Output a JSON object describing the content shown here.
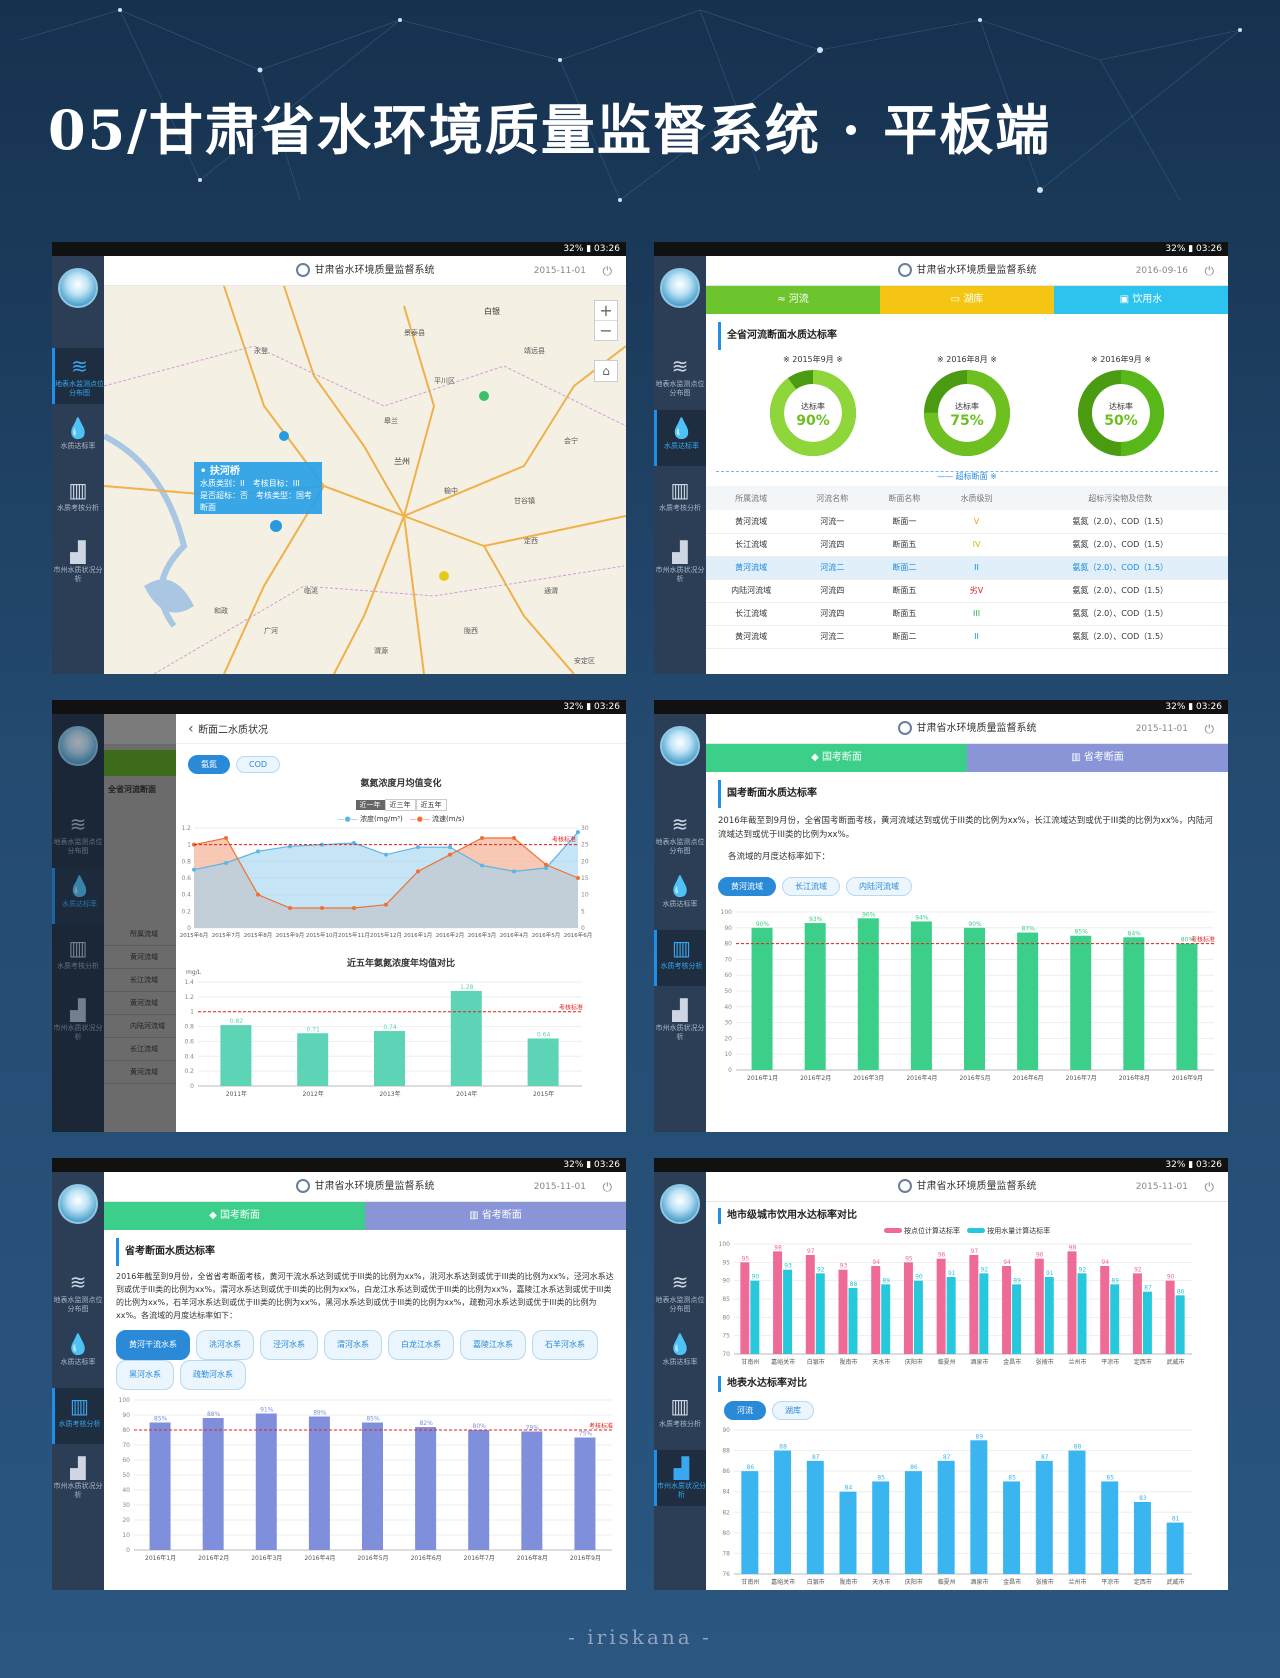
{
  "page_title": "05/甘肃省水环境质量监督系统 · 平板端",
  "credit": "- iriskana -",
  "status_bar": "32% ▮ 03:26",
  "app_title": "甘肃省水环境质量监督系统",
  "nav": {
    "map": "地表水监测点位分布图",
    "rate": "水质达标率",
    "assess": "水质考核分析",
    "city": "市州水质状况分析"
  },
  "screen1": {
    "date": "2015-11-01",
    "popup": {
      "title": "扶河桥",
      "line1": "水质类别：II　考核目标：III",
      "line2": "是否超标：否　考核类型：国考断面"
    },
    "places": [
      "白银",
      "兰州",
      "景泰县",
      "靖远县",
      "临洮",
      "定西",
      "会宁",
      "平川区",
      "永登",
      "皋兰",
      "榆中",
      "和政",
      "广河",
      "渭源",
      "陇西",
      "通渭",
      "安定区",
      "甘谷镇"
    ]
  },
  "screen2": {
    "date": "2016-09-16",
    "tabs": [
      "河流",
      "湖库",
      "饮用水"
    ],
    "section": "全省河流断面水质达标率",
    "donuts": [
      {
        "label": "※ 2015年9月 ※",
        "value": 90,
        "caption": "达标率",
        "text": "90%"
      },
      {
        "label": "※ 2016年8月 ※",
        "value": 75,
        "caption": "达标率",
        "text": "75%"
      },
      {
        "label": "※ 2016年9月 ※",
        "value": 50,
        "caption": "达标率",
        "text": "50%"
      }
    ],
    "divider": "—— 超标断面 ※",
    "columns": [
      "所属流域",
      "河流名称",
      "断面名称",
      "水质级别",
      "超标污染物及倍数"
    ],
    "rows": [
      [
        "黄河流域",
        "河流一",
        "断面一",
        "V",
        "氨氮（2.0）、COD（1.5）"
      ],
      [
        "长江流域",
        "河流四",
        "断面五",
        "IV",
        "氨氮（2.0）、COD（1.5）"
      ],
      [
        "黄河流域",
        "河流二",
        "断面二",
        "II",
        "氨氮（2.0）、COD（1.5）"
      ],
      [
        "内陆河流域",
        "河流四",
        "断面五",
        "劣V",
        "氨氮（2.0）、COD（1.5）"
      ],
      [
        "长江流域",
        "河流四",
        "断面五",
        "III",
        "氨氮（2.0）、COD（1.5）"
      ],
      [
        "黄河流域",
        "河流二",
        "断面二",
        "II",
        "氨氮（2.0）、COD（1.5）"
      ]
    ],
    "grade_colors": [
      "#f0a800",
      "#d8b800",
      "#1e88d8",
      "#e02020",
      "#2bb04a",
      "#1e88d8"
    ]
  },
  "screen3": {
    "back_title": "断面二水质状况",
    "pills": [
      "氨氮",
      "COD"
    ],
    "chart1_title": "氨氮浓度月均值变化",
    "periods": [
      "近一年",
      "近三年",
      "近五年"
    ],
    "legend": [
      "浓度(mg/m³)",
      "流速(m/s)"
    ],
    "chart2_title": "近五年氨氮浓度年均值对比",
    "unit": "mg/L",
    "std_label": "考核标准",
    "bg_section": "全省河流断面",
    "bg_rows": [
      "所属流域",
      "黄河流域",
      "长江流域",
      "黄河流域",
      "内陆河流域",
      "长江流域",
      "黄河流域"
    ]
  },
  "screen4": {
    "date": "2015-11-01",
    "tabs": [
      "国考断面",
      "省考断面"
    ],
    "section": "国考断面水质达标率",
    "para": "2016年截至到9月份，全省国考断面考核，黄河流域达到或优于III类的比例为xx%，长江流域达到或优于III类的比例为xx%，内陆河流域达到或优于III类的比例为xx%。",
    "sub": "各流域的月度达标率如下：",
    "pills": [
      "黄河流域",
      "长江流域",
      "内陆河流域"
    ],
    "std_label": "考核标准"
  },
  "screen5": {
    "date": "2015-11-01",
    "tabs": [
      "国考断面",
      "省考断面"
    ],
    "section": "省考断面水质达标率",
    "para": "2016年截至到9月份，全省省考断面考核，黄河干流水系达到或优于III类的比例为xx%，洮河水系达到或优于III类的比例为xx%，泾河水系达到或优于III类的比例为xx%，渭河水系达到或优于III类的比例为xx%，白龙江水系达到或优于III类的比例为xx%，嘉陵江水系达到或优于III类的比例为xx%，石羊河水系达到或优于III类的比例为xx%，黑河水系达到或优于III类的比例为xx%，疏勒河水系达到或优于III类的比例为xx%。各流域的月度达标率如下：",
    "pills": [
      "黄河干流水系",
      "洮河水系",
      "泾河水系",
      "渭河水系",
      "白龙江水系",
      "嘉陵江水系",
      "石羊河水系",
      "黑河水系",
      "疏勒河水系"
    ],
    "std_label": "考核标准"
  },
  "screen6": {
    "date": "2015-11-01",
    "section1": "地市级城市饮用水达标率对比",
    "legend": [
      "按点位计算达标率",
      "按用水量计算达标率"
    ],
    "section2": "地表水达标率对比",
    "pills": [
      "河流",
      "湖库"
    ]
  },
  "chart_data": [
    {
      "type": "line",
      "title": "氨氮浓度月均值变化",
      "x": [
        "2015年6月",
        "2015年7月",
        "2015年8月",
        "2015年9月",
        "2015年10月",
        "2015年11月",
        "2015年12月",
        "2016年1月",
        "2016年2月",
        "2016年3月",
        "2016年4月",
        "2016年5月",
        "2016年6月"
      ],
      "series": [
        {
          "name": "浓度(mg/m³)",
          "values": [
            0.7,
            0.78,
            0.92,
            0.98,
            1.0,
            1.02,
            0.88,
            0.97,
            0.97,
            0.75,
            0.68,
            0.72,
            1.15
          ]
        },
        {
          "name": "流速(m/s)",
          "values": [
            25,
            27,
            10,
            6,
            6,
            6,
            7,
            17,
            22,
            27,
            27,
            19,
            15
          ]
        }
      ],
      "ylim": [
        0,
        1.2
      ],
      "y2lim": [
        0,
        30
      ],
      "standard": 1.0
    },
    {
      "type": "bar",
      "title": "近五年氨氮浓度年均值对比",
      "categories": [
        "2011年",
        "2012年",
        "2013年",
        "2014年",
        "2015年"
      ],
      "values": [
        0.82,
        0.71,
        0.74,
        1.28,
        0.64
      ],
      "ylim": [
        0,
        1.4
      ],
      "standard": 1.0,
      "color": "#5dd4b6"
    },
    {
      "type": "bar",
      "title": "国考断面水质达标率",
      "categories": [
        "2016年1月",
        "2016年2月",
        "2016年3月",
        "2016年4月",
        "2016年5月",
        "2016年6月",
        "2016年7月",
        "2016年8月",
        "2016年9月"
      ],
      "values": [
        90,
        93,
        96,
        94,
        90,
        87,
        85,
        84,
        80
      ],
      "ylim": [
        0,
        100
      ],
      "standard": 80,
      "color": "#3ccf8a"
    },
    {
      "type": "bar",
      "title": "省考断面水质达标率",
      "categories": [
        "2016年1月",
        "2016年2月",
        "2016年3月",
        "2016年4月",
        "2016年5月",
        "2016年6月",
        "2016年7月",
        "2016年8月",
        "2016年9月"
      ],
      "values": [
        85,
        88,
        91,
        89,
        85,
        82,
        80,
        79,
        75
      ],
      "ylim": [
        0,
        100
      ],
      "standard": 80,
      "color": "#7f8fdb"
    },
    {
      "type": "bar",
      "title": "地市级城市饮用水达标率对比",
      "categories": [
        "甘南州",
        "嘉峪关市",
        "白银市",
        "陇南市",
        "天水市",
        "庆阳市",
        "临夏州",
        "酒泉市",
        "金昌市",
        "张掖市",
        "兰州市",
        "平凉市",
        "定西市",
        "武威市"
      ],
      "series": [
        {
          "name": "按点位计算达标率",
          "values": [
            95,
            98,
            97,
            93,
            94,
            95,
            96,
            97,
            94,
            96,
            98,
            94,
            92,
            90
          ],
          "color": "#ef6b97"
        },
        {
          "name": "按用水量计算达标率",
          "values": [
            90,
            93,
            92,
            88,
            89,
            90,
            91,
            92,
            89,
            91,
            92,
            89,
            87,
            86
          ],
          "color": "#28c8dc"
        }
      ],
      "ylim": [
        70,
        100
      ]
    },
    {
      "type": "bar",
      "title": "地表水达标率对比",
      "categories": [
        "甘南州",
        "嘉峪关市",
        "白银市",
        "陇南市",
        "天水市",
        "庆阳市",
        "临夏州",
        "酒泉市",
        "金昌市",
        "张掖市",
        "兰州市",
        "平凉市",
        "定西市",
        "武威市"
      ],
      "values": [
        86,
        88,
        87,
        84,
        85,
        86,
        87,
        89,
        85,
        87,
        88,
        85,
        83,
        81
      ],
      "ylim": [
        76,
        90
      ],
      "color": "#3bb5f0"
    }
  ]
}
